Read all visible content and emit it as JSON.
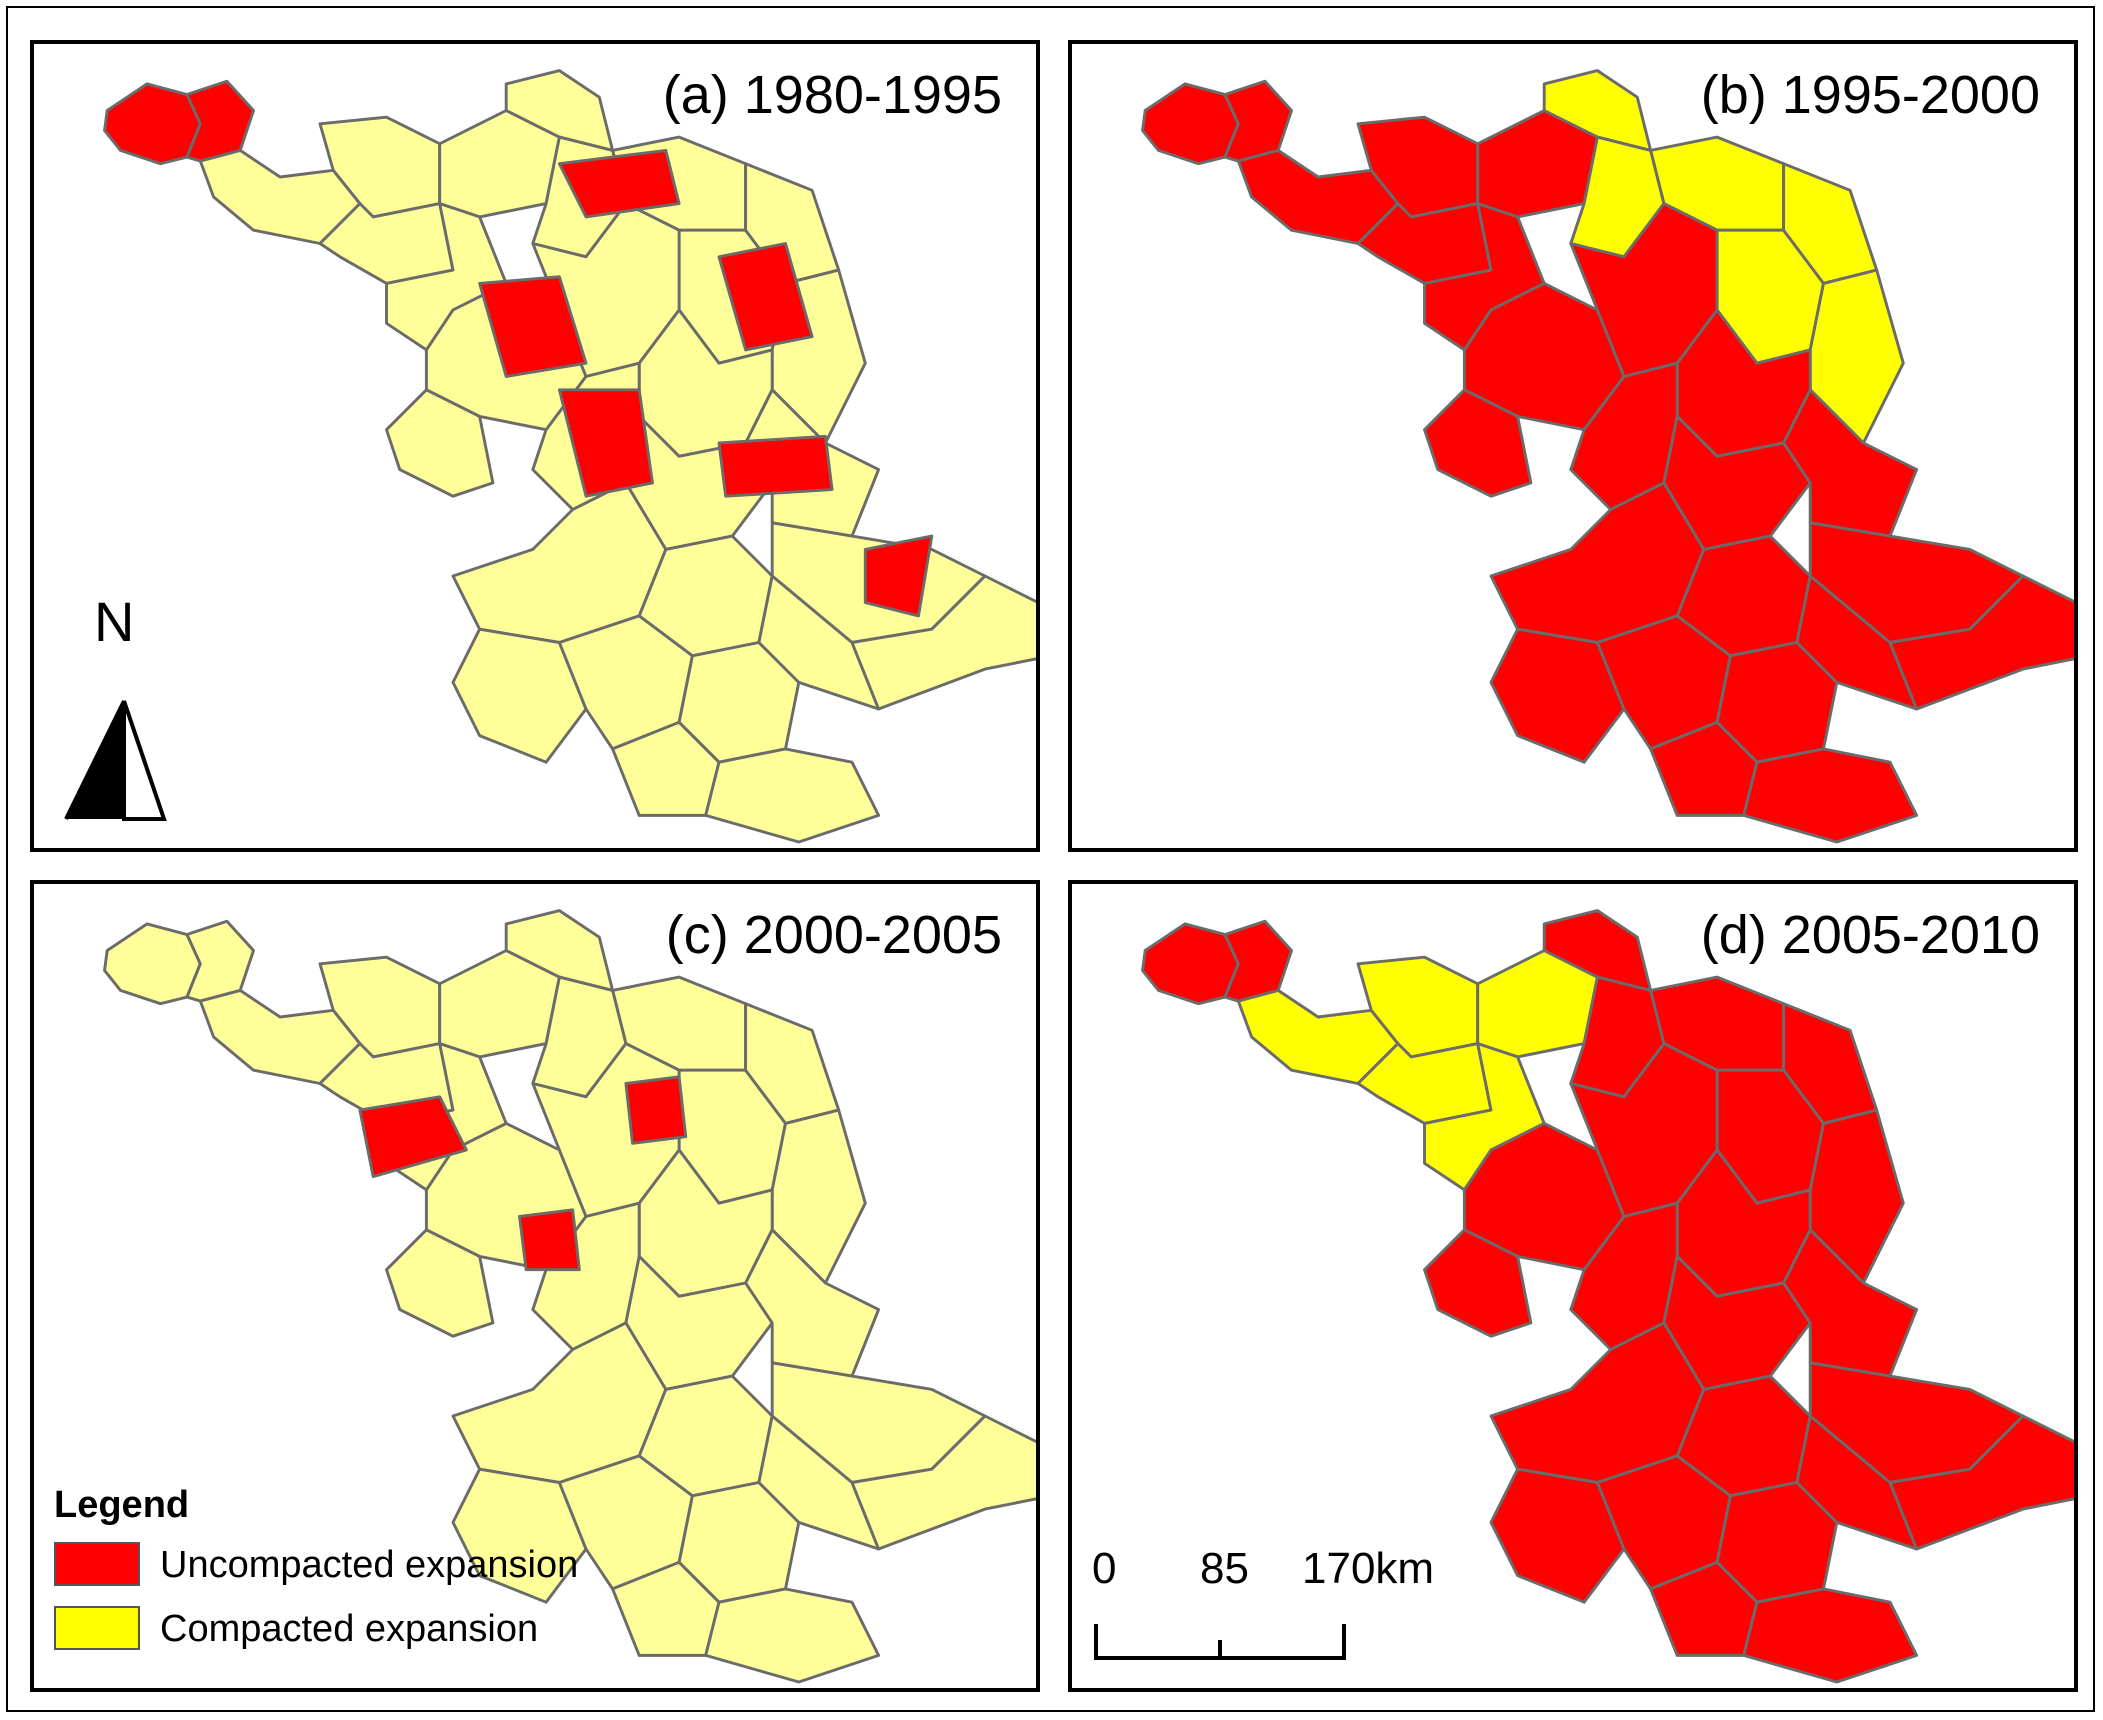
{
  "panels": [
    {
      "id": "a",
      "title": "(a) 1980-1995",
      "regions": {
        "north_tip": "red",
        "northwest": "light",
        "north_coast": "light",
        "center": "light",
        "south": "light",
        "hot_spots": [
          "north-strip",
          "coast-mid",
          "center-west",
          "center-south",
          "coast-south",
          "east-tip"
        ]
      }
    },
    {
      "id": "b",
      "title": "(b) 1995-2000",
      "regions": {
        "north_tip": "red",
        "northwest": "red",
        "north_coast": "yellow",
        "center": "red",
        "south": "red",
        "hot_spots": []
      }
    },
    {
      "id": "c",
      "title": "(c) 2000-2005",
      "regions": {
        "north_tip": "light",
        "northwest": "light",
        "north_coast": "light",
        "center": "light",
        "south": "light",
        "hot_spots": [
          "west-blob",
          "center-small",
          "north-small"
        ]
      }
    },
    {
      "id": "d",
      "title": "(d) 2005-2010",
      "regions": {
        "north_tip": "red",
        "northwest": "yellow",
        "north_coast": "red",
        "center": "red",
        "south": "red",
        "hot_spots": []
      }
    }
  ],
  "colors": {
    "uncompacted": "#ff0000",
    "compacted_bright": "#ffff00",
    "compacted_light": "#ffff99",
    "border": "#6b6b6b"
  },
  "north_arrow": {
    "label": "N"
  },
  "legend": {
    "title": "Legend",
    "items": [
      {
        "label": "Uncompacted expansion",
        "color": "#ff0000"
      },
      {
        "label": "Compacted expansion",
        "color": "#ffff00"
      }
    ]
  },
  "scale_bar": {
    "labels": [
      "0",
      "85",
      "170km"
    ]
  }
}
